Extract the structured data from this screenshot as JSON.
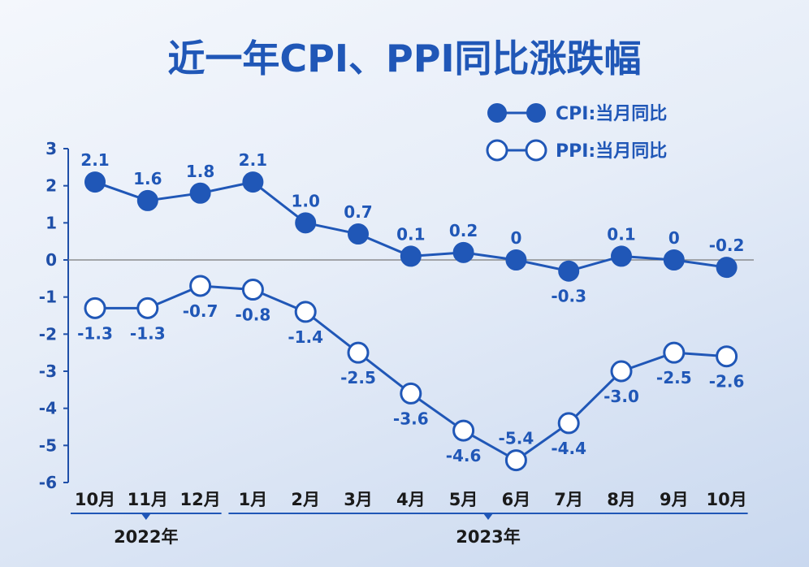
{
  "title": "近一年CPI、PPI同比涨跌幅",
  "chart_data": {
    "type": "line",
    "categories": [
      "10月",
      "11月",
      "12月",
      "1月",
      "2月",
      "3月",
      "4月",
      "5月",
      "6月",
      "7月",
      "8月",
      "9月",
      "10月"
    ],
    "year_groups": [
      {
        "label": "2022年",
        "start": 0,
        "end": 2
      },
      {
        "label": "2023年",
        "start": 3,
        "end": 12
      }
    ],
    "ylim": [
      -6,
      3
    ],
    "yticks": [
      3,
      2,
      1,
      0,
      -1,
      -2,
      -3,
      -4,
      -5,
      -6
    ],
    "series": [
      {
        "name": "CPI:当月同比",
        "marker": "filled",
        "values": [
          2.1,
          1.6,
          1.8,
          2.1,
          1.0,
          0.7,
          0.1,
          0.2,
          0,
          -0.3,
          0.1,
          0,
          -0.2
        ],
        "labels": [
          "2.1",
          "1.6",
          "1.8",
          "2.1",
          "1.0",
          "0.7",
          "0.1",
          "0.2",
          "0",
          "-0.3",
          "0.1",
          "0",
          "-0.2"
        ],
        "label_pos": [
          "above",
          "above",
          "above",
          "above",
          "above",
          "above",
          "above",
          "above",
          "above",
          "below",
          "above",
          "above",
          "above"
        ]
      },
      {
        "name": "PPI:当月同比",
        "marker": "hollow",
        "values": [
          -1.3,
          -1.3,
          -0.7,
          -0.8,
          -1.4,
          -2.5,
          -3.6,
          -4.6,
          -5.4,
          -4.4,
          -3.0,
          -2.5,
          -2.6
        ],
        "labels": [
          "-1.3",
          "-1.3",
          "-0.7",
          "-0.8",
          "-1.4",
          "-2.5",
          "-3.6",
          "-4.6",
          "-5.4",
          "-4.4",
          "-3.0",
          "-2.5",
          "-2.6"
        ],
        "label_pos": [
          "below",
          "below",
          "below",
          "below",
          "below",
          "below",
          "below",
          "below",
          "above",
          "below",
          "below",
          "below",
          "below"
        ]
      }
    ],
    "colors": {
      "primary": "#2057b7",
      "zero_line": "#7a7a7a",
      "axis": "#1f4fa8"
    },
    "legend": "top-right",
    "grid": false
  }
}
